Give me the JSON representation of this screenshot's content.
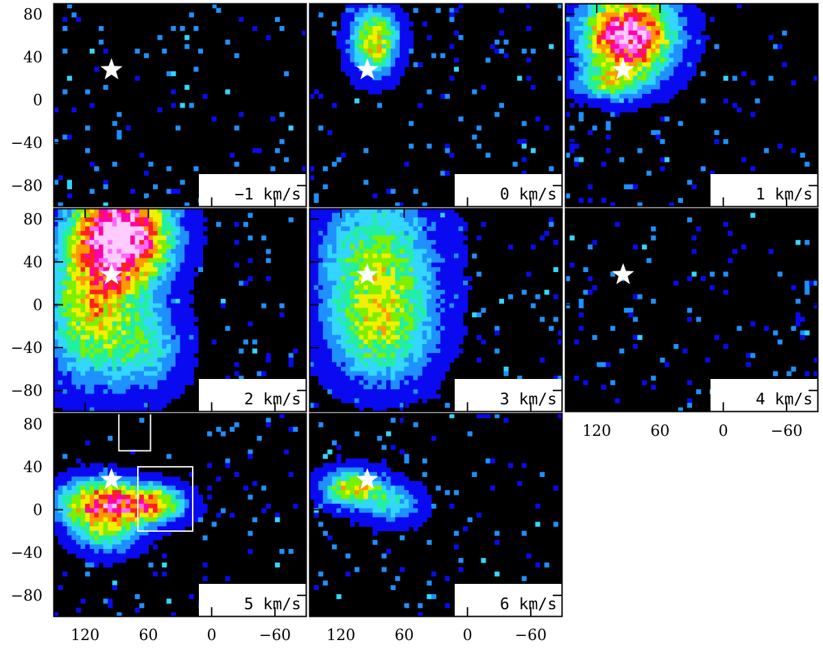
{
  "chart_data": {
    "type": "heatmap",
    "description_units": "channel maps; x offset (arcsec), y offset (arcsec)",
    "x_ticks": [
      120,
      60,
      0,
      -60
    ],
    "y_ticks": [
      80,
      40,
      0,
      -40,
      -80
    ],
    "xlim": [
      150,
      -90
    ],
    "ylim": [
      -100,
      90
    ],
    "star_position": {
      "x": 95,
      "y": 28
    },
    "colormap": [
      "#000000",
      "#0a0af0",
      "#1e90ff",
      "#33d6ff",
      "#22f0a0",
      "#7cf000",
      "#f0f000",
      "#ff9900",
      "#ff2020",
      "#ff00aa",
      "#ff66ff",
      "#ffccff"
    ],
    "panels": [
      {
        "row": 0,
        "col": 0,
        "label": "−1 km/s",
        "blobs": []
      },
      {
        "row": 0,
        "col": 1,
        "label": "0 km/s",
        "blobs": [
          {
            "x": 88,
            "y": 55,
            "sx": 16,
            "sy": 22,
            "amp": 6.8
          }
        ]
      },
      {
        "row": 0,
        "col": 2,
        "label": "1 km/s",
        "blobs": [
          {
            "x": 90,
            "y": 60,
            "sx": 30,
            "sy": 28,
            "amp": 11
          },
          {
            "x": 110,
            "y": 15,
            "sx": 22,
            "sy": 10,
            "amp": 4
          }
        ]
      },
      {
        "row": 1,
        "col": 0,
        "label": "2 km/s",
        "blobs": [
          {
            "x": 85,
            "y": 65,
            "sx": 32,
            "sy": 32,
            "amp": 12
          },
          {
            "x": 115,
            "y": -10,
            "sx": 30,
            "sy": 45,
            "amp": 6
          },
          {
            "x": 60,
            "y": -40,
            "sx": 25,
            "sy": 30,
            "amp": 3.5
          }
        ]
      },
      {
        "row": 1,
        "col": 1,
        "label": "3 km/s",
        "blobs": [
          {
            "x": 85,
            "y": 40,
            "sx": 40,
            "sy": 50,
            "amp": 5.2
          },
          {
            "x": 80,
            "y": -30,
            "sx": 35,
            "sy": 35,
            "amp": 4
          }
        ]
      },
      {
        "row": 1,
        "col": 2,
        "label": "4 km/s",
        "blobs": []
      },
      {
        "row": 2,
        "col": 0,
        "label": "5 km/s",
        "blobs": [
          {
            "x": 105,
            "y": 5,
            "sx": 28,
            "sy": 16,
            "amp": 8.6
          },
          {
            "x": 55,
            "y": 5,
            "sx": 22,
            "sy": 12,
            "amp": 6.5
          },
          {
            "x": 100,
            "y": -25,
            "sx": 22,
            "sy": 14,
            "amp": 3.5
          }
        ],
        "boxes": [
          {
            "x1": 88,
            "x2": 58,
            "y1": 90,
            "y2": 55
          },
          {
            "x1": 70,
            "x2": 18,
            "y1": 40,
            "y2": -20
          }
        ]
      },
      {
        "row": 2,
        "col": 1,
        "label": "6 km/s",
        "blobs": [
          {
            "x": 110,
            "y": 20,
            "sx": 20,
            "sy": 12,
            "amp": 6.5
          },
          {
            "x": 70,
            "y": 5,
            "sx": 20,
            "sy": 14,
            "amp": 3.6
          }
        ]
      }
    ]
  }
}
